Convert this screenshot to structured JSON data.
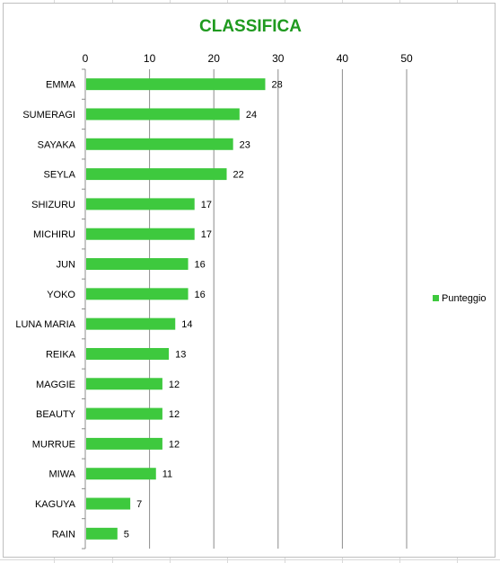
{
  "colors": {
    "bar": "#3ec93e",
    "title": "#1f9a1f",
    "grid": "#8c8c8c"
  },
  "chart_data": {
    "type": "bar",
    "orientation": "horizontal",
    "title": "CLASSIFICA",
    "xlabel": "",
    "ylabel": "",
    "xlim": [
      0,
      50
    ],
    "x_ticks": [
      0,
      10,
      20,
      30,
      40,
      50
    ],
    "x_axis_position": "top",
    "grid": true,
    "legend_position": "right",
    "categories": [
      "EMMA",
      "SUMERAGI",
      "SAYAKA",
      "SEYLA",
      "SHIZURU",
      "MICHIRU",
      "JUN",
      "YOKO",
      "LUNA MARIA",
      "REIKA",
      "MAGGIE",
      "BEAUTY",
      "MURRUE",
      "MIWA",
      "KAGUYA",
      "RAIN"
    ],
    "series": [
      {
        "name": "Punteggio",
        "values": [
          28,
          24,
          23,
          22,
          17,
          17,
          16,
          16,
          14,
          13,
          12,
          12,
          12,
          11,
          7,
          5
        ]
      }
    ]
  }
}
